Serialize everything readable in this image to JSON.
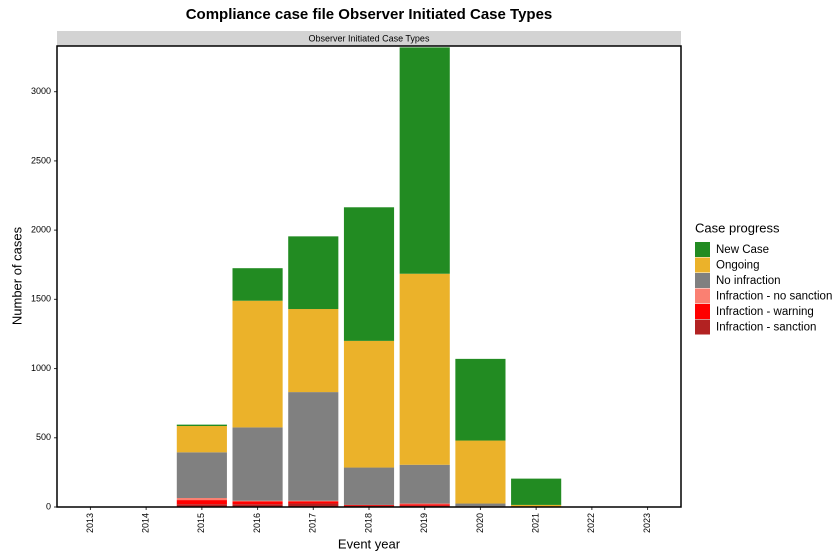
{
  "chart_data": {
    "type": "stacked-bar",
    "title": "Compliance case file Observer Initiated Case Types",
    "strip": "Observer Initiated Case Types",
    "x_label": "Event year",
    "y_label": "Number of cases",
    "legend_title": "Case progress",
    "categories": [
      "2013",
      "2014",
      "2015",
      "2016",
      "2017",
      "2018",
      "2019",
      "2020",
      "2021",
      "2022",
      "2023"
    ],
    "series": [
      {
        "name": "Infraction - sanction",
        "color": "#b22222",
        "values": [
          0,
          0,
          20,
          20,
          25,
          10,
          10,
          5,
          0,
          0,
          0
        ]
      },
      {
        "name": "Infraction - warning",
        "color": "#ff0000",
        "values": [
          0,
          0,
          30,
          20,
          15,
          5,
          10,
          0,
          0,
          0,
          0
        ]
      },
      {
        "name": "Infraction - no sanction",
        "color": "#fa8072",
        "values": [
          0,
          0,
          15,
          5,
          5,
          0,
          5,
          0,
          0,
          0,
          0
        ]
      },
      {
        "name": "No infraction",
        "color": "#808080",
        "values": [
          0,
          0,
          330,
          530,
          785,
          270,
          280,
          20,
          0,
          0,
          0
        ]
      },
      {
        "name": "Ongoing",
        "color": "#ebb22a",
        "values": [
          0,
          0,
          190,
          915,
          600,
          915,
          1380,
          455,
          15,
          0,
          0
        ]
      },
      {
        "name": "New Case",
        "color": "#228b22",
        "values": [
          0,
          0,
          10,
          235,
          525,
          965,
          1635,
          590,
          190,
          0,
          0
        ]
      }
    ],
    "ylim": [
      0,
      3330
    ],
    "yticks": [
      0,
      500,
      1000,
      1500,
      2000,
      2500,
      3000
    ],
    "grid": false
  }
}
